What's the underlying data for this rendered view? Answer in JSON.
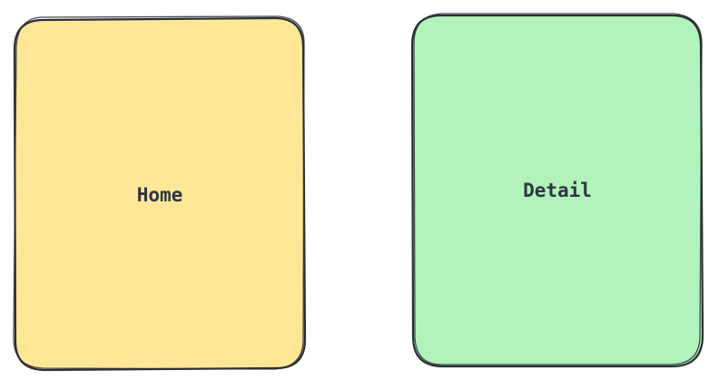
{
  "boxes": [
    {
      "id": "home",
      "label": "Home",
      "fill": "#fde796",
      "stroke": "#2b2f36"
    },
    {
      "id": "detail",
      "label": "Detail",
      "fill": "#b2f2bb",
      "stroke": "#2b2f36"
    }
  ]
}
